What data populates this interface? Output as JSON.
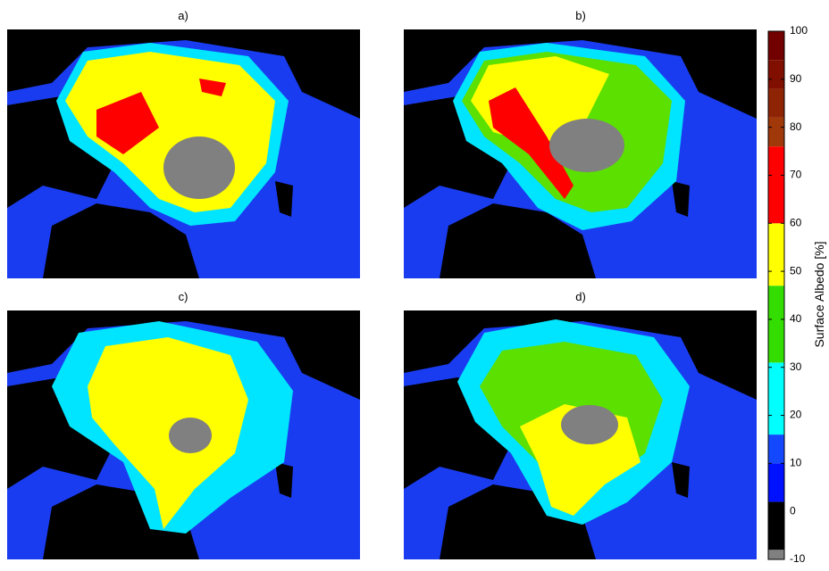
{
  "panels": [
    {
      "label": "a)"
    },
    {
      "label": "b)"
    },
    {
      "label": "c)"
    },
    {
      "label": "d)"
    }
  ],
  "colorbar": {
    "label": "Surface Albedo [%]",
    "ylim": [
      -10,
      100
    ],
    "yticks": [
      -10,
      0,
      10,
      20,
      30,
      40,
      50,
      60,
      70,
      80,
      90,
      100
    ],
    "bands": [
      {
        "from": -10,
        "to": -8,
        "color": "#808080"
      },
      {
        "from": -8,
        "to": 2,
        "color": "#000000"
      },
      {
        "from": 2,
        "to": 10,
        "color": "#0011ff"
      },
      {
        "from": 10,
        "to": 16,
        "color": "#1448ff"
      },
      {
        "from": 16,
        "to": 31,
        "color": "#00ffff"
      },
      {
        "from": 31,
        "to": 47,
        "color": "#33dd00"
      },
      {
        "from": 47,
        "to": 60,
        "color": "#ffff00"
      },
      {
        "from": 60,
        "to": 76,
        "color": "#ff0000"
      },
      {
        "from": 76,
        "to": 82,
        "color": "#a0380a"
      },
      {
        "from": 82,
        "to": 88,
        "color": "#8e2404"
      },
      {
        "from": 88,
        "to": 94,
        "color": "#800f00"
      },
      {
        "from": 94,
        "to": 100,
        "color": "#720000"
      }
    ]
  }
}
